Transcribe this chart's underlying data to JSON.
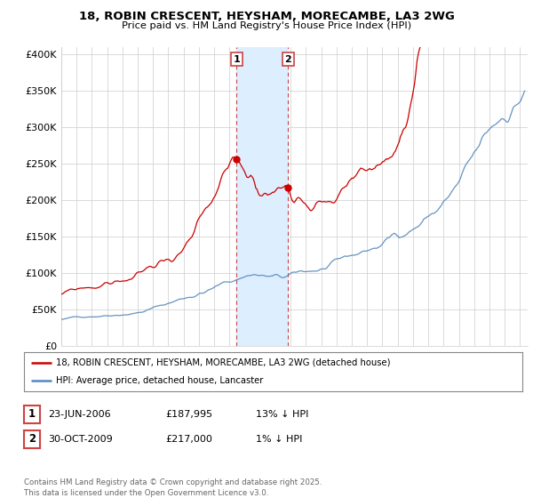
{
  "title": "18, ROBIN CRESCENT, HEYSHAM, MORECAMBE, LA3 2WG",
  "subtitle": "Price paid vs. HM Land Registry's House Price Index (HPI)",
  "ylabel_ticks": [
    "£0",
    "£50K",
    "£100K",
    "£150K",
    "£200K",
    "£250K",
    "£300K",
    "£350K",
    "£400K"
  ],
  "ytick_values": [
    0,
    50000,
    100000,
    150000,
    200000,
    250000,
    300000,
    350000,
    400000
  ],
  "ylim": [
    0,
    410000
  ],
  "xlim_start": 1995.0,
  "xlim_end": 2025.5,
  "purchase1_date": 2006.47,
  "purchase1_price": 187995,
  "purchase2_date": 2009.83,
  "purchase2_price": 217000,
  "legend_line1": "18, ROBIN CRESCENT, HEYSHAM, MORECAMBE, LA3 2WG (detached house)",
  "legend_line2": "HPI: Average price, detached house, Lancaster",
  "table_row1": [
    "1",
    "23-JUN-2006",
    "£187,995",
    "13% ↓ HPI"
  ],
  "table_row2": [
    "2",
    "30-OCT-2009",
    "£217,000",
    "1% ↓ HPI"
  ],
  "footnote": "Contains HM Land Registry data © Crown copyright and database right 2025.\nThis data is licensed under the Open Government Licence v3.0.",
  "line_color_price": "#cc0000",
  "line_color_hpi": "#5588bb",
  "shading_color": "#ddeeff",
  "background_color": "#ffffff",
  "grid_color": "#cccccc"
}
